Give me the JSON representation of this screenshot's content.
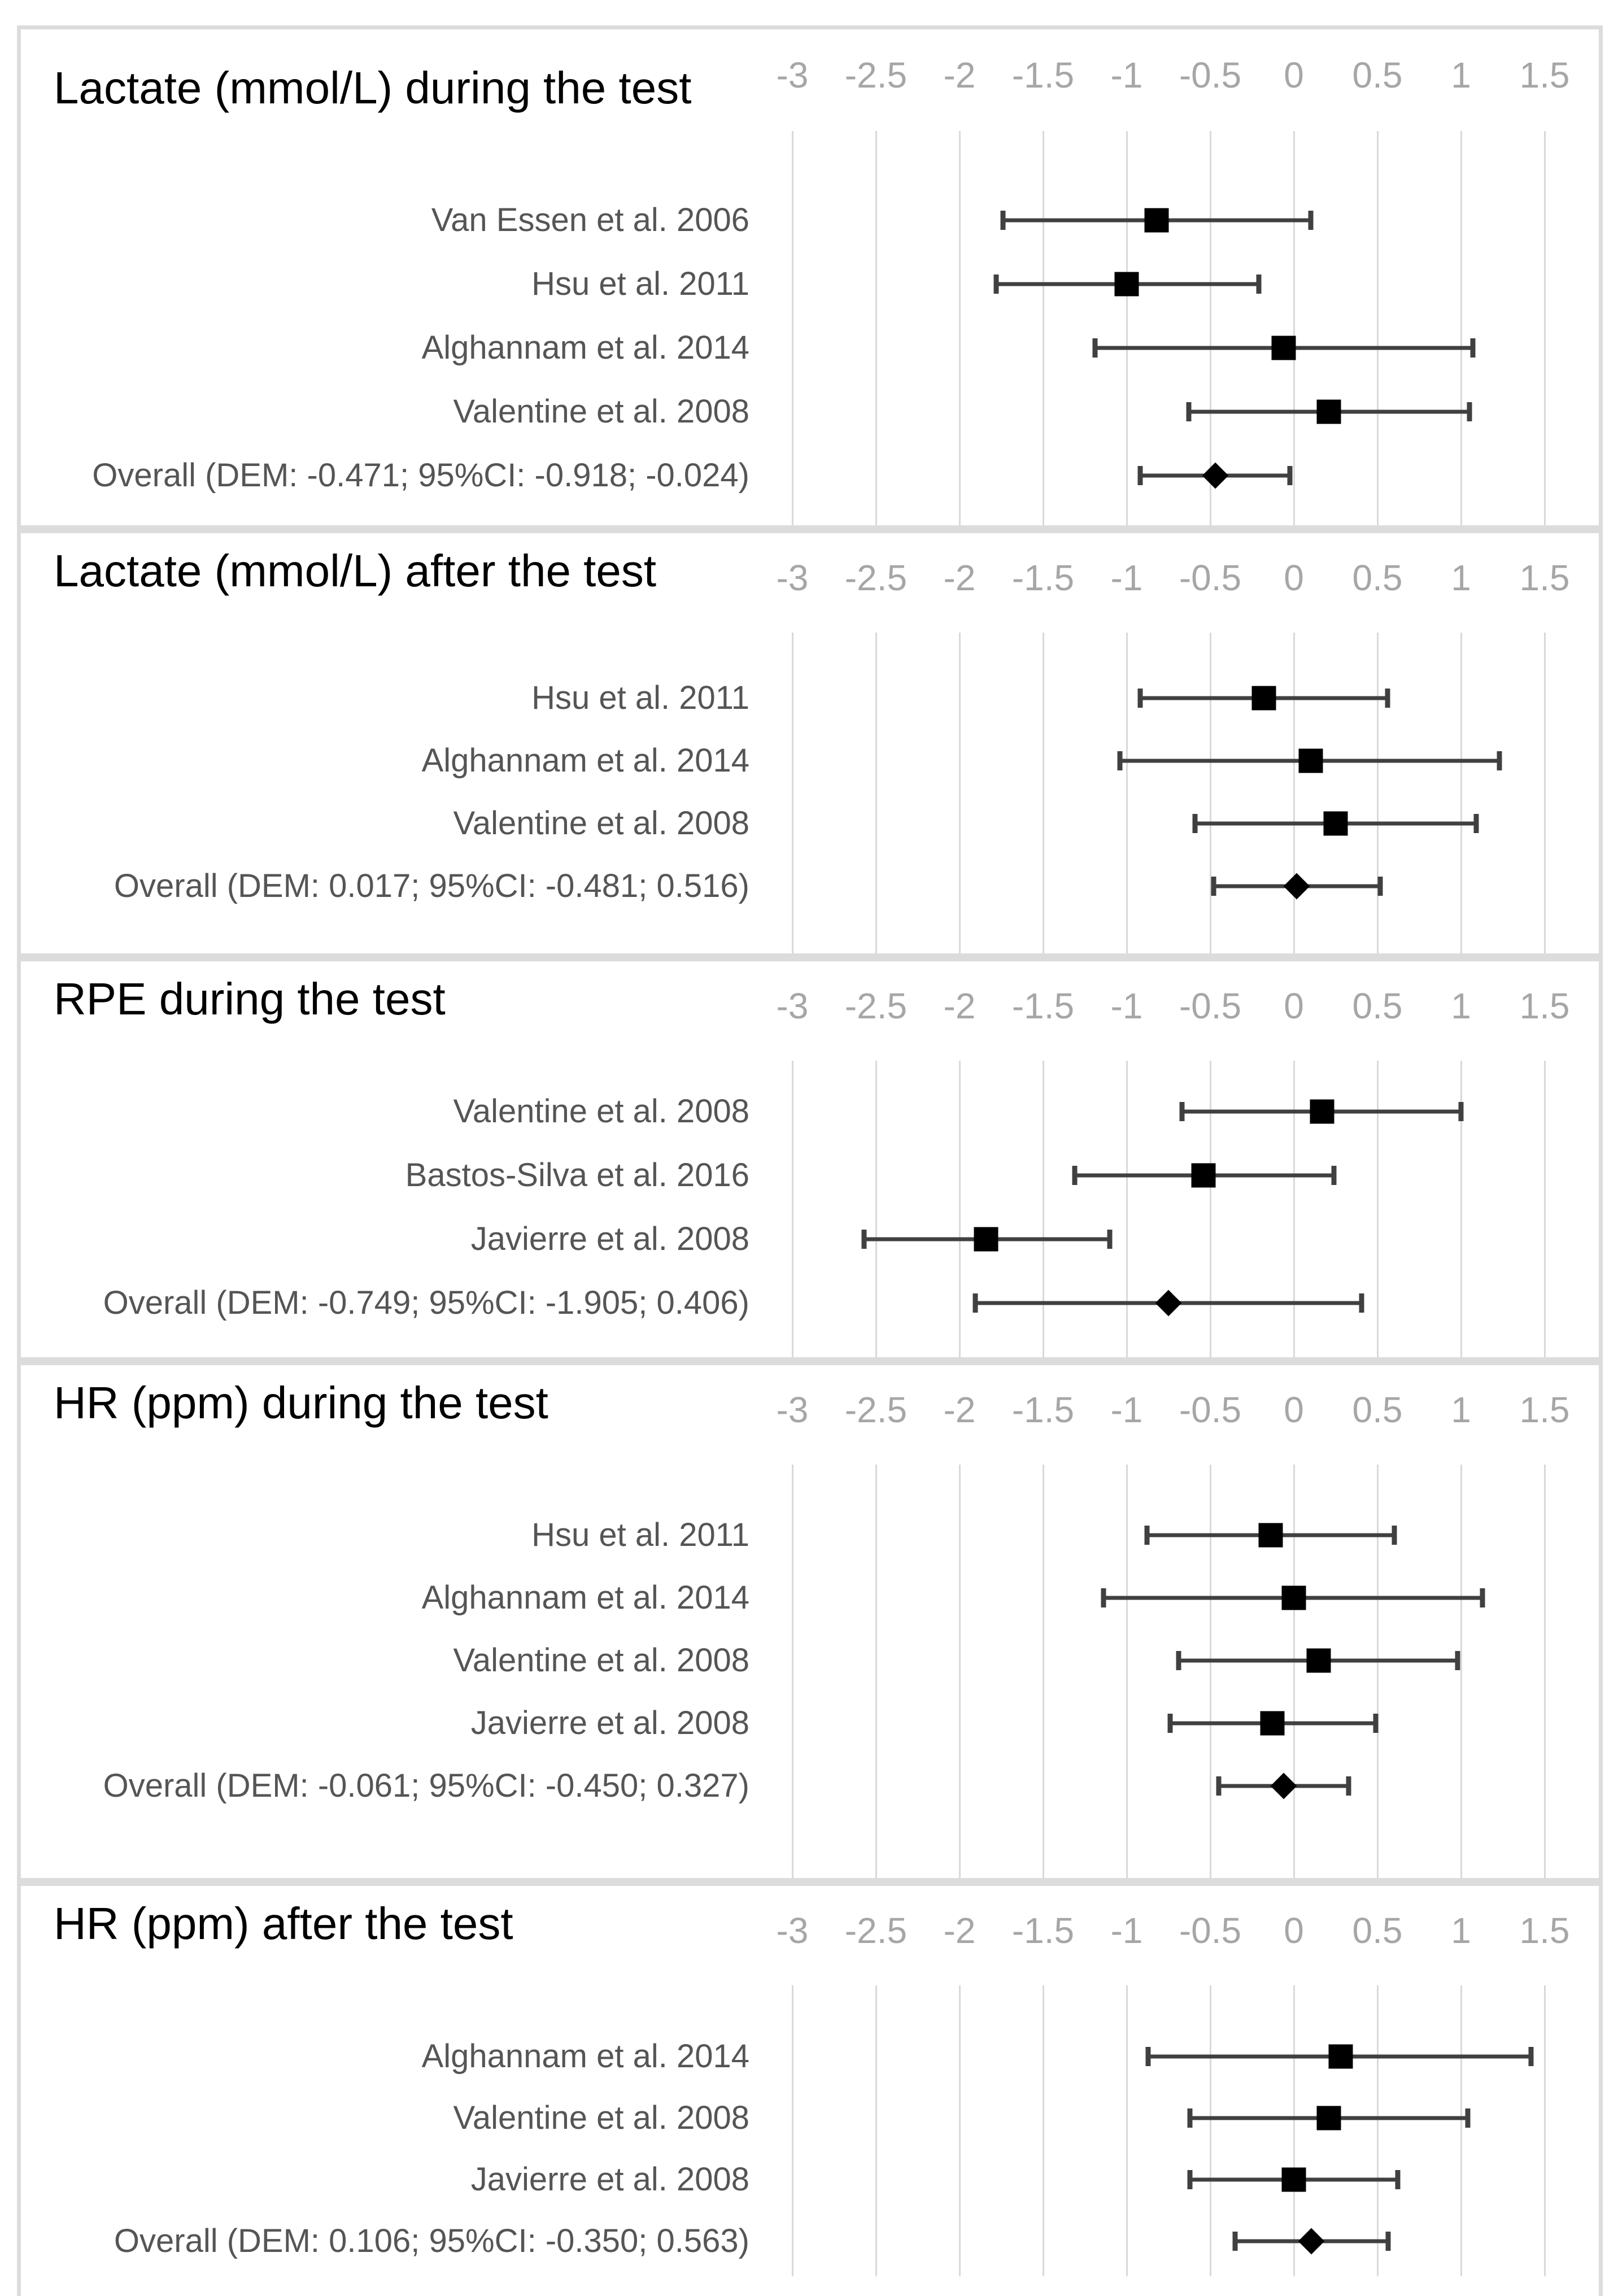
{
  "page": {
    "background": "#ffffff",
    "kind": "forest-plot meta-analysis figure"
  },
  "colors": {
    "panel_border": "#dcdcdc",
    "gridline": "#d9d9d9",
    "tick_label": "#a6a6a6",
    "study_label": "#555555",
    "error_bar": "#404040",
    "marker": "#000000",
    "title": "#000000"
  },
  "axis": {
    "ticks": [
      "-3",
      "-2.5",
      "-2",
      "-1.5",
      "-1",
      "-0.5",
      "0",
      "0.5",
      "1",
      "1.5"
    ],
    "tick_values": [
      -3,
      -2.5,
      -2,
      -1.5,
      -1,
      -0.5,
      0,
      0.5,
      1,
      1.5
    ],
    "grid": "on",
    "legend": "none"
  },
  "chart_data": [
    {
      "type": "forest",
      "title": "Lactate (mmol/L) during the test",
      "xlabel": "",
      "ylabel": "",
      "xlim": [
        -3.15,
        1.8
      ],
      "rows": [
        {
          "label": "Van Essen et al. 2006",
          "marker": "square",
          "estimate": -0.82,
          "ci_low": -1.74,
          "ci_high": 0.1
        },
        {
          "label": "Hsu et al. 2011",
          "marker": "square",
          "estimate": -1.0,
          "ci_low": -1.78,
          "ci_high": -0.21
        },
        {
          "label": "Alghannam et al. 2014",
          "marker": "square",
          "estimate": -0.06,
          "ci_low": -1.19,
          "ci_high": 1.07
        },
        {
          "label": "Valentine et al. 2008",
          "marker": "square",
          "estimate": 0.21,
          "ci_low": -0.63,
          "ci_high": 1.05
        },
        {
          "label": "Overall (DEM: -0.471; 95%CI: -0.918; -0.024)",
          "marker": "diamond",
          "estimate": -0.471,
          "ci_low": -0.918,
          "ci_high": -0.024
        }
      ]
    },
    {
      "type": "forest",
      "title": "Lactate (mmol/L) after the test",
      "xlabel": "",
      "ylabel": "",
      "xlim": [
        -3.15,
        1.8
      ],
      "rows": [
        {
          "label": "Hsu et al. 2011",
          "marker": "square",
          "estimate": -0.18,
          "ci_low": -0.92,
          "ci_high": 0.56
        },
        {
          "label": "Alghannam et al. 2014",
          "marker": "square",
          "estimate": 0.1,
          "ci_low": -1.04,
          "ci_high": 1.23
        },
        {
          "label": "Valentine et al. 2008",
          "marker": "square",
          "estimate": 0.25,
          "ci_low": -0.59,
          "ci_high": 1.09
        },
        {
          "label": "Overall (DEM: 0.017; 95%CI: -0.481; 0.516)",
          "marker": "diamond",
          "estimate": 0.017,
          "ci_low": -0.481,
          "ci_high": 0.516
        }
      ]
    },
    {
      "type": "forest",
      "title": "RPE during the test",
      "xlabel": "",
      "ylabel": "",
      "xlim": [
        -3.15,
        1.8
      ],
      "rows": [
        {
          "label": "Valentine et al. 2008",
          "marker": "square",
          "estimate": 0.17,
          "ci_low": -0.67,
          "ci_high": 1.0
        },
        {
          "label": "Bastos-Silva et al. 2016",
          "marker": "square",
          "estimate": -0.54,
          "ci_low": -1.31,
          "ci_high": 0.24
        },
        {
          "label": "Javierre et al. 2008",
          "marker": "square",
          "estimate": -1.84,
          "ci_low": -2.57,
          "ci_high": -1.1
        },
        {
          "label": "Overall (DEM: -0.749; 95%CI: -1.905; 0.406)",
          "marker": "diamond",
          "estimate": -0.749,
          "ci_low": -1.905,
          "ci_high": 0.406
        }
      ]
    },
    {
      "type": "forest",
      "title": "HR (ppm) during the test",
      "xlabel": "",
      "ylabel": "",
      "xlim": [
        -3.15,
        1.8
      ],
      "rows": [
        {
          "label": "Hsu et al. 2011",
          "marker": "square",
          "estimate": -0.14,
          "ci_low": -0.88,
          "ci_high": 0.6
        },
        {
          "label": "Alghannam et al. 2014",
          "marker": "square",
          "estimate": 0.0,
          "ci_low": -1.14,
          "ci_high": 1.13
        },
        {
          "label": "Valentine et al. 2008",
          "marker": "square",
          "estimate": 0.15,
          "ci_low": -0.69,
          "ci_high": 0.98
        },
        {
          "label": "Javierre et al. 2008",
          "marker": "square",
          "estimate": -0.13,
          "ci_low": -0.74,
          "ci_high": 0.49
        },
        {
          "label": "Overall (DEM: -0.061; 95%CI: -0.450; 0.327)",
          "marker": "diamond",
          "estimate": -0.061,
          "ci_low": -0.45,
          "ci_high": 0.327
        }
      ]
    },
    {
      "type": "forest",
      "title": "HR (ppm) after the test",
      "xlabel": "",
      "ylabel": "",
      "xlim": [
        -3.15,
        1.8
      ],
      "rows": [
        {
          "label": "Alghannam et al. 2014",
          "marker": "square",
          "estimate": 0.28,
          "ci_low": -0.87,
          "ci_high": 1.42
        },
        {
          "label": "Valentine et al. 2008",
          "marker": "square",
          "estimate": 0.21,
          "ci_low": -0.62,
          "ci_high": 1.04
        },
        {
          "label": "Javierre et al. 2008",
          "marker": "square",
          "estimate": 0.0,
          "ci_low": -0.62,
          "ci_high": 0.62
        },
        {
          "label": "Overall (DEM: 0.106; 95%CI: -0.350; 0.563)",
          "marker": "diamond",
          "estimate": 0.106,
          "ci_low": -0.35,
          "ci_high": 0.563
        }
      ]
    }
  ]
}
